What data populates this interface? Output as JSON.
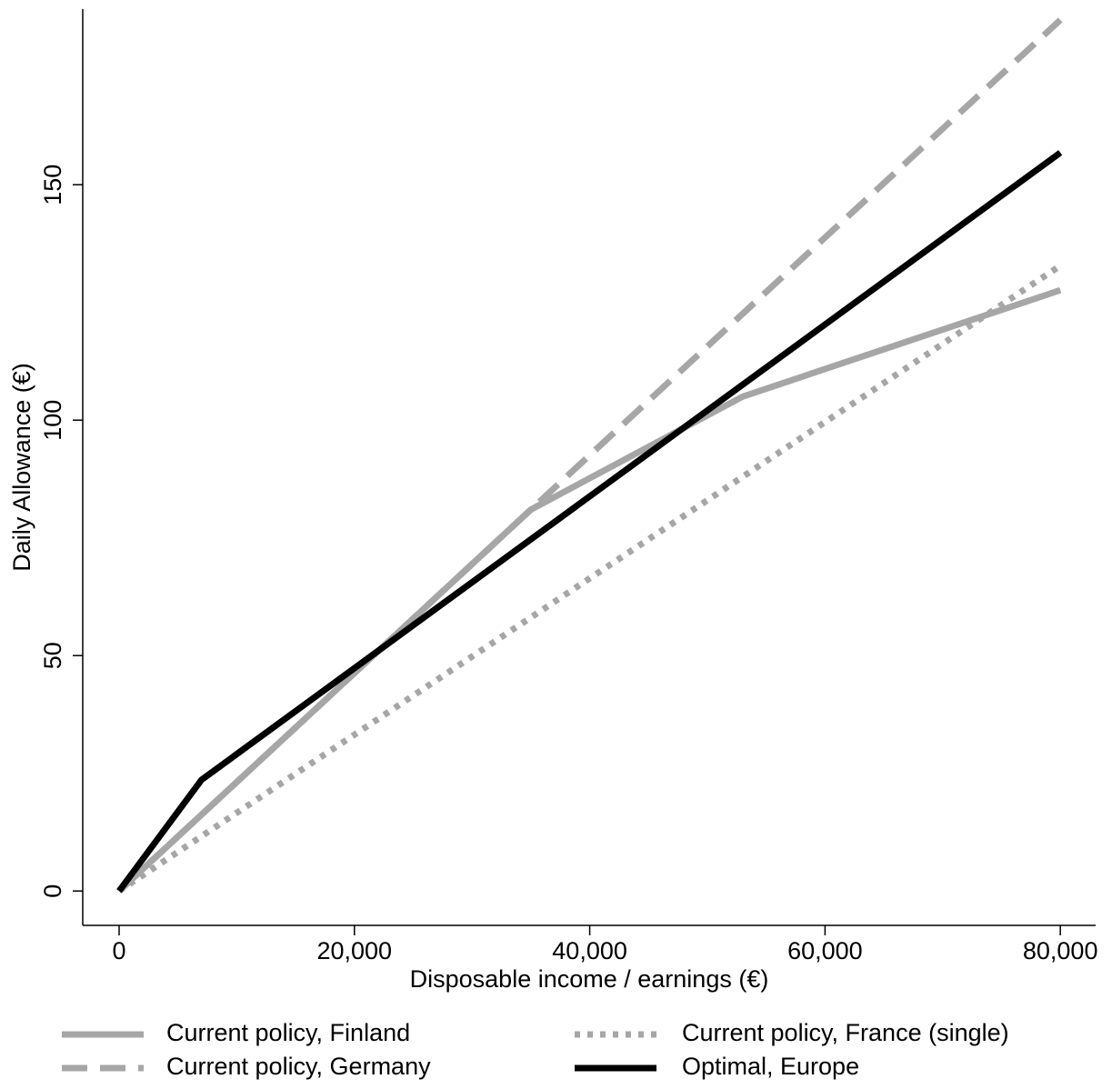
{
  "chart_data": {
    "type": "line",
    "x_label": "Disposable income / earnings (€)",
    "y_label": "Daily Allowance (€)",
    "xlim": [
      -3091,
      83000
    ],
    "ylim": [
      -7.3,
      187.3
    ],
    "xticks": [
      0,
      {
        "value": 20000,
        "label": "20,000"
      },
      {
        "value": 40000,
        "label": "40,000"
      },
      {
        "value": 60000,
        "label": "60,000"
      },
      {
        "value": 80000,
        "label": "80,000"
      }
    ],
    "yticks": [
      0,
      50,
      100,
      150
    ],
    "grid": false,
    "legend": "bottom",
    "series": [
      {
        "name": "Current policy, Finland",
        "color": "#a6a6a6",
        "dash": "solid",
        "x": [
          0,
          35000,
          53000,
          80000
        ],
        "values": [
          0,
          81,
          105,
          127.6
        ]
      },
      {
        "name": "Current policy, France (single)",
        "color": "#a6a6a6",
        "dash": "dotted",
        "x": [
          0,
          80000
        ],
        "values": [
          0,
          132.8
        ]
      },
      {
        "name": "Current policy, Germany",
        "color": "#a6a6a6",
        "dash": "dashed",
        "x": [
          0,
          35000,
          80000
        ],
        "values": [
          0,
          81,
          185
        ]
      },
      {
        "name": "Optimal, Europe",
        "color": "#000000",
        "dash": "solid",
        "x": [
          0,
          7000,
          80000
        ],
        "values": [
          0,
          23.6,
          156.8
        ]
      }
    ]
  }
}
